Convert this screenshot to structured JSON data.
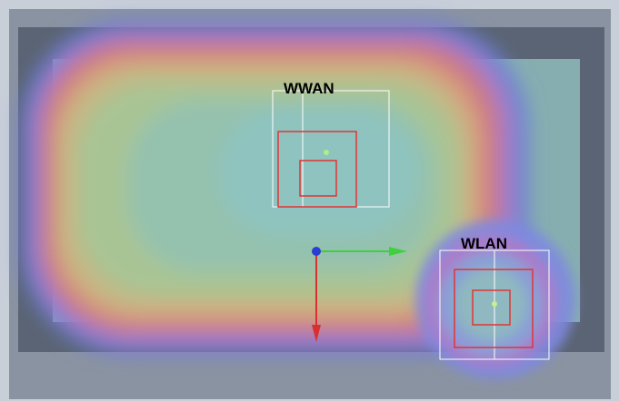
{
  "labels": {
    "wwan": "WWAN",
    "wlan": "WLAN"
  }
}
